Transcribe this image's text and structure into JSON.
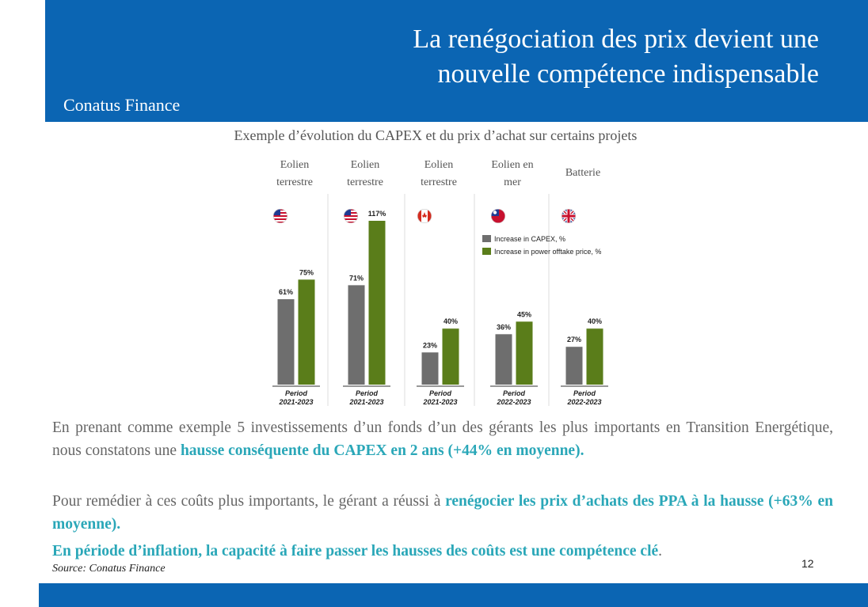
{
  "header": {
    "title_line1": "La renégociation des prix devient une",
    "title_line2": "nouvelle compétence indispensable",
    "brand": "Conatus Finance",
    "color": "#0b65b3"
  },
  "chart_data": {
    "type": "bar",
    "title": "Exemple d’évolution du CAPEX et du prix d’achat sur certains projets",
    "categories": [
      {
        "label_line1": "Eolien",
        "label_line2": "terrestre",
        "flag": "us-flag-icon",
        "period_label": "Period",
        "period": "2021-2023"
      },
      {
        "label_line1": "Eolien",
        "label_line2": "terrestre",
        "flag": "us-flag-icon",
        "period_label": "Period",
        "period": "2021-2023"
      },
      {
        "label_line1": "Eolien",
        "label_line2": "terrestre",
        "flag": "canada-flag-icon",
        "period_label": "Period",
        "period": "2021-2023"
      },
      {
        "label_line1": "Eolien en",
        "label_line2": "mer",
        "flag": "taiwan-flag-icon",
        "period_label": "Period",
        "period": "2022-2023"
      },
      {
        "label_line1": "Batterie",
        "label_line2": "",
        "flag": "uk-flag-icon",
        "period_label": "Period",
        "period": "2022-2023"
      }
    ],
    "series": [
      {
        "name": "Increase in CAPEX, %",
        "color": "#6e6e6e",
        "values": [
          61,
          71,
          23,
          36,
          27
        ],
        "labels": [
          "61%",
          "71%",
          "23%",
          "36%",
          "27%"
        ]
      },
      {
        "name": "Increase in power offtake price, %",
        "color": "#5a7d1a",
        "values": [
          75,
          117,
          40,
          45,
          40
        ],
        "labels": [
          "75%",
          "117%",
          "40%",
          "45%",
          "40%"
        ]
      }
    ],
    "ylim": [
      0,
      117
    ],
    "legend_position": "top-right"
  },
  "body": {
    "p1_start": "En prenant comme exemple 5 investissements d’un fonds d’un des gérants les plus importants en Transition Energétique, nous constatons une ",
    "p1_highlight": "hausse conséquente du CAPEX en 2 ans (+44% en moyenne).",
    "p2_start": "Pour remédier à ces coûts plus importants, le gérant a réussi à ",
    "p2_highlight": "renégocier les prix d’achats des PPA à la hausse (+63% en moyenne).",
    "p3_highlight": "En période d’inflation, la capacité à faire passer les hausses des coûts est une compétence clé",
    "p3_end": "."
  },
  "footer": {
    "source": "Source: Conatus Finance",
    "page_number": "12"
  }
}
